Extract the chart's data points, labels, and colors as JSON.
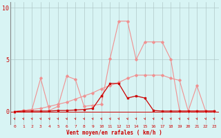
{
  "x": [
    0,
    1,
    2,
    3,
    4,
    5,
    6,
    7,
    8,
    9,
    10,
    11,
    12,
    13,
    14,
    15,
    16,
    17,
    18,
    19,
    20,
    21,
    22,
    23
  ],
  "rafales_y": [
    0.0,
    0.1,
    0.2,
    3.2,
    0.1,
    0.5,
    3.4,
    3.1,
    0.5,
    0.6,
    0.7,
    5.1,
    8.7,
    8.7,
    5.0,
    6.7,
    6.7,
    6.7,
    5.0,
    0.05,
    0.05,
    2.5,
    0.05,
    0.05
  ],
  "moyen_trend_y": [
    0.0,
    0.1,
    0.2,
    0.3,
    0.5,
    0.7,
    0.9,
    1.2,
    1.5,
    1.8,
    2.2,
    2.5,
    2.8,
    3.2,
    3.5,
    3.5,
    3.5,
    3.5,
    3.2,
    3.0,
    0.05,
    0.05,
    0.05,
    0.05
  ],
  "moyen_actual_y": [
    0.0,
    0.05,
    0.05,
    0.05,
    0.05,
    0.1,
    0.1,
    0.15,
    0.2,
    0.3,
    1.5,
    2.7,
    2.7,
    1.3,
    1.5,
    1.3,
    0.1,
    0.05,
    0.05,
    0.05,
    0.05,
    0.05,
    0.05,
    0.05
  ],
  "color_light": "#f09090",
  "color_medium": "#f09090",
  "color_dark": "#cc0000",
  "bg_color": "#d8f4f4",
  "grid_color": "#b0c8c8",
  "ylim": [
    -1.2,
    10.5
  ],
  "xlim": [
    -0.5,
    23.5
  ],
  "xlabel": "Vent moyen/en rafales ( km/h )",
  "yticks": [
    0,
    5,
    10
  ],
  "ytick_labels": [
    "0",
    "5",
    "10"
  ]
}
